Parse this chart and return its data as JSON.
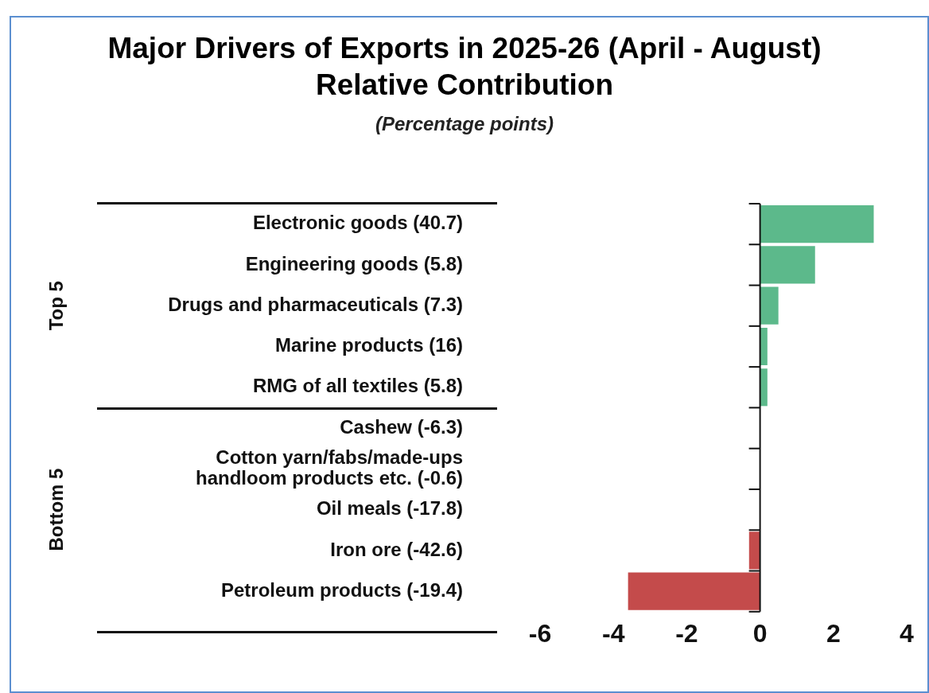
{
  "chart_data": {
    "type": "bar",
    "orientation": "horizontal",
    "title": "Major Drivers of Exports in 2025-26 (April - August) Relative Contribution",
    "subtitle": "(Percentage points)",
    "categories": [
      "Electronic goods (40.7)",
      "Engineering goods (5.8)",
      "Drugs and pharmaceuticals (7.3)",
      "Marine products (16)",
      "RMG of all textiles (5.8)",
      "Cashew (-6.3)",
      "Cotton yarn/fabs/made-ups handloom products etc. (-0.6)",
      "Oil meals (-17.8)",
      "Iron ore (-42.6)",
      "Petroleum products (-19.4)"
    ],
    "values": [
      3.1,
      1.5,
      0.5,
      0.2,
      0.2,
      0,
      0,
      0,
      -0.3,
      -3.6
    ],
    "colors": [
      "#5cb98b",
      "#5cb98b",
      "#5cb98b",
      "#5cb98b",
      "#5cb98b",
      "#5cb98b",
      "#5cb98b",
      "#c44b4b",
      "#c44b4b",
      "#c44b4b"
    ],
    "xlim": [
      -6,
      4
    ],
    "ref_lines": [
      {
        "axis": "x",
        "value": 0
      }
    ],
    "xticks": [
      -6,
      -4,
      -2,
      0,
      2,
      4
    ],
    "annotations": [
      "Top 5",
      "Bottom 5"
    ],
    "grid": false,
    "legend": false
  }
}
